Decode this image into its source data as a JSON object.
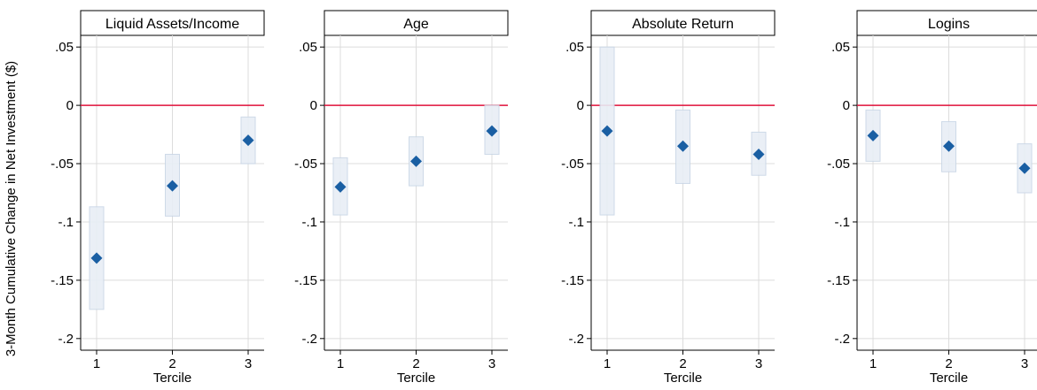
{
  "figure": {
    "ylabel": "3-Month Cumulative Change in Net Investment ($)"
  },
  "colors": {
    "marker": "#1a5fa3",
    "ci_fill": "#e8eef6",
    "ci_stroke": "#c9d6e6",
    "zero_line": "#e0103a",
    "grid": "#dcdcdc"
  },
  "chart_data": [
    {
      "type": "scatter",
      "title": "Liquid Assets/Income",
      "xlabel": "Tercile",
      "x": [
        1,
        2,
        3
      ],
      "values": [
        -0.131,
        -0.069,
        -0.03
      ],
      "ci_low": [
        -0.175,
        -0.095,
        -0.05
      ],
      "ci_high": [
        -0.087,
        -0.042,
        -0.01
      ],
      "xticks": [
        "1",
        "2",
        "3"
      ],
      "yticks": [
        ".05",
        "0",
        "-.05",
        "-.1",
        "-.15",
        "-.2"
      ],
      "ylim": [
        -0.21,
        0.06
      ],
      "reference_line": 0,
      "grid": true
    },
    {
      "type": "scatter",
      "title": "Age",
      "xlabel": "Tercile",
      "x": [
        1,
        2,
        3
      ],
      "values": [
        -0.07,
        -0.048,
        -0.022
      ],
      "ci_low": [
        -0.094,
        -0.069,
        -0.042
      ],
      "ci_high": [
        -0.045,
        -0.027,
        0.0
      ],
      "xticks": [
        "1",
        "2",
        "3"
      ],
      "yticks": [
        ".05",
        "0",
        "-.05",
        "-.1",
        "-.15",
        "-.2"
      ],
      "ylim": [
        -0.21,
        0.06
      ],
      "reference_line": 0,
      "grid": true
    },
    {
      "type": "scatter",
      "title": "Absolute Return",
      "xlabel": "Tercile",
      "x": [
        1,
        2,
        3
      ],
      "values": [
        -0.022,
        -0.035,
        -0.042
      ],
      "ci_low": [
        -0.094,
        -0.067,
        -0.06
      ],
      "ci_high": [
        0.05,
        -0.004,
        -0.023
      ],
      "xticks": [
        "1",
        "2",
        "3"
      ],
      "yticks": [
        ".05",
        "0",
        "-.05",
        "-.1",
        "-.15",
        "-.2"
      ],
      "ylim": [
        -0.21,
        0.06
      ],
      "reference_line": 0,
      "grid": true
    },
    {
      "type": "scatter",
      "title": "Logins",
      "xlabel": "Tercile",
      "x": [
        1,
        2,
        3
      ],
      "values": [
        -0.026,
        -0.035,
        -0.054
      ],
      "ci_low": [
        -0.048,
        -0.057,
        -0.075
      ],
      "ci_high": [
        -0.004,
        -0.014,
        -0.033
      ],
      "xticks": [
        "1",
        "2",
        "3"
      ],
      "yticks": [
        ".05",
        "0",
        "-.05",
        "-.1",
        "-.15",
        "-.2"
      ],
      "ylim": [
        -0.21,
        0.06
      ],
      "reference_line": 0,
      "grid": true
    }
  ]
}
